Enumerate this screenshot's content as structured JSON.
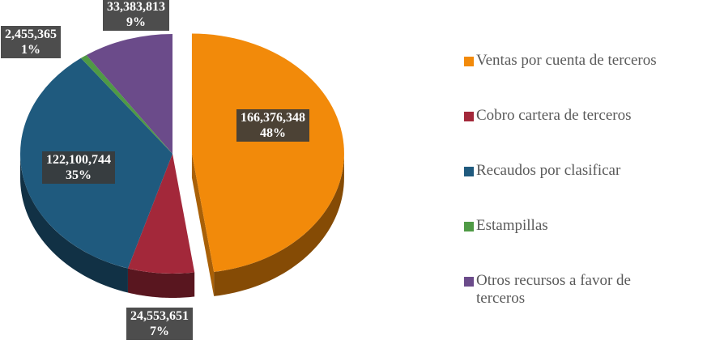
{
  "chart_data": {
    "type": "pie",
    "categories": [
      "Ventas por cuenta de terceros",
      "Cobro cartera de terceros",
      "Recaudos por clasificar",
      "Estampillas",
      "Otros recursos a favor de terceros"
    ],
    "values": [
      166376348,
      24553651,
      122100744,
      2455365,
      33383813
    ],
    "value_labels": [
      "166,376,348",
      "24,553,651",
      "122,100,744",
      "2,455,365",
      "33,383,813"
    ],
    "percent_labels": [
      "48%",
      "7%",
      "35%",
      "1%",
      "9%"
    ],
    "colors": [
      "#f28a0a",
      "#a3283a",
      "#1f5a7e",
      "#4f9a45",
      "#6b4b8a"
    ],
    "legend": "right"
  }
}
